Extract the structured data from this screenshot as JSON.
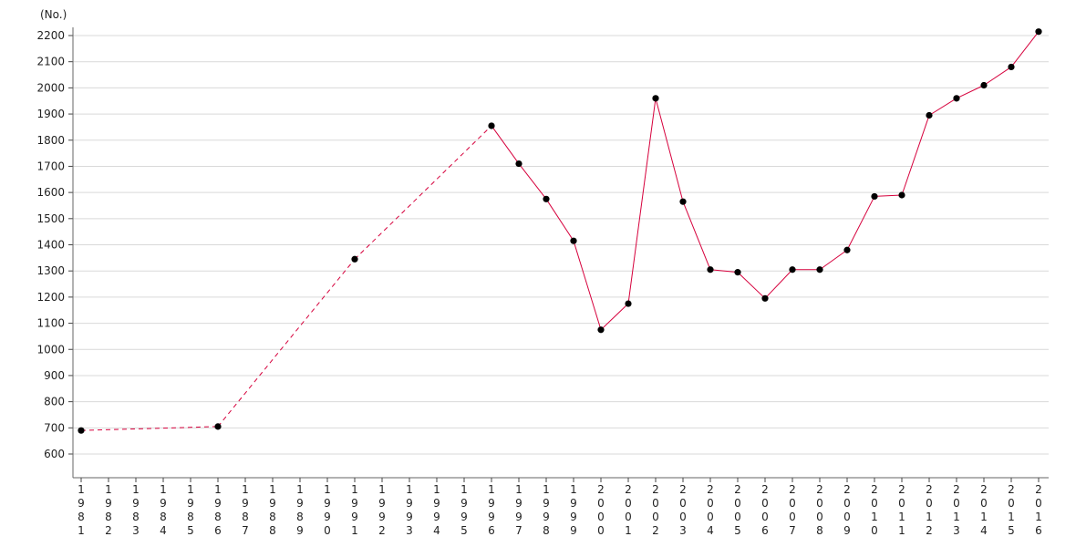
{
  "chart_data": {
    "type": "line",
    "unit_label": "(No.)",
    "ylim": [
      600,
      2200
    ],
    "yticks": [
      600,
      700,
      800,
      900,
      1000,
      1100,
      1200,
      1300,
      1400,
      1500,
      1600,
      1700,
      1800,
      1900,
      2000,
      2100,
      2200
    ],
    "categories": [
      "1981",
      "1982",
      "1983",
      "1984",
      "1985",
      "1986",
      "1987",
      "1988",
      "1989",
      "1990",
      "1991",
      "1992",
      "1993",
      "1994",
      "1995",
      "1996",
      "1997",
      "1998",
      "1999",
      "2000",
      "2001",
      "2002",
      "2003",
      "2004",
      "2005",
      "2006",
      "2007",
      "2008",
      "2009",
      "2010",
      "2011",
      "2012",
      "2013",
      "2014",
      "2015",
      "2016"
    ],
    "grid": true,
    "line_color": "#d6003c",
    "marker_color": "#000000",
    "series": [
      {
        "points": [
          {
            "x": "1981",
            "y": 690
          },
          {
            "x": "1986",
            "y": 705
          },
          {
            "x": "1991",
            "y": 1345
          },
          {
            "x": "1996",
            "y": 1855
          },
          {
            "x": "1997",
            "y": 1710
          },
          {
            "x": "1998",
            "y": 1575
          },
          {
            "x": "1999",
            "y": 1415
          },
          {
            "x": "2000",
            "y": 1075
          },
          {
            "x": "2001",
            "y": 1175
          },
          {
            "x": "2002",
            "y": 1960
          },
          {
            "x": "2003",
            "y": 1565
          },
          {
            "x": "2004",
            "y": 1305
          },
          {
            "x": "2005",
            "y": 1295
          },
          {
            "x": "2006",
            "y": 1195
          },
          {
            "x": "2007",
            "y": 1305
          },
          {
            "x": "2008",
            "y": 1305
          },
          {
            "x": "2009",
            "y": 1380
          },
          {
            "x": "2010",
            "y": 1585
          },
          {
            "x": "2011",
            "y": 1590
          },
          {
            "x": "2012",
            "y": 1895
          },
          {
            "x": "2013",
            "y": 1960
          },
          {
            "x": "2014",
            "y": 2010
          },
          {
            "x": "2015",
            "y": 2080
          },
          {
            "x": "2016",
            "y": 2215
          }
        ]
      }
    ]
  }
}
